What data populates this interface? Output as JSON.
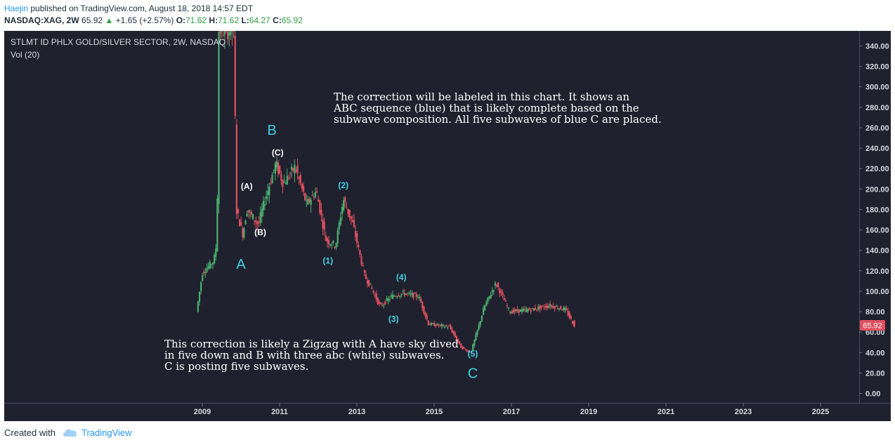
{
  "header": {
    "user": "Haejin",
    "published_text": "published on TradingView.com, August 18, 2018 14:57 EDT",
    "symbol": "NASDAQ:XAG, 2W",
    "last": "65.92",
    "change": "+1.65 (+2.57%)",
    "o_label": "O:",
    "o": "71.62",
    "h_label": "H:",
    "h": "71.62",
    "l_label": "L:",
    "l": "64.27",
    "c_label": "C:",
    "c": "65.92"
  },
  "chart_title": "STLMT ID PHLX GOLD/SILVER SECTOR, 2W, NASDAQ",
  "volume_label": "Vol (20)",
  "price_badge": "65.92",
  "annotations": {
    "top_text": "The correction will be labeled in this chart. It shows an\nABC sequence (blue) that is likely complete based on the\nsubwave composition. All five subwaves of blue C are placed.",
    "bottom_text": "This correction is likely a Zigzag with A have sky dived\nin five down and B with three abc (white) subwaves.\nC is posting five subwaves.",
    "wave_labels": [
      {
        "text": "A",
        "date": 2010.0,
        "price": 122,
        "color": "cyan",
        "size": "big"
      },
      {
        "text": "B",
        "date": 2010.8,
        "price": 253,
        "color": "cyan",
        "size": "big"
      },
      {
        "text": "C",
        "date": 2016.0,
        "price": 15,
        "color": "cyan",
        "size": "big"
      },
      {
        "text": "(A)",
        "date": 2010.15,
        "price": 200,
        "color": "white",
        "size": "small"
      },
      {
        "text": "(B)",
        "date": 2010.5,
        "price": 155,
        "color": "white",
        "size": "small"
      },
      {
        "text": "(C)",
        "date": 2010.95,
        "price": 233,
        "color": "white",
        "size": "small"
      },
      {
        "text": "(1)",
        "date": 2012.25,
        "price": 127,
        "color": "cyan",
        "size": "small"
      },
      {
        "text": "(2)",
        "date": 2012.65,
        "price": 201,
        "color": "cyan",
        "size": "small"
      },
      {
        "text": "(3)",
        "date": 2013.95,
        "price": 70,
        "color": "cyan",
        "size": "small"
      },
      {
        "text": "(4)",
        "date": 2014.15,
        "price": 111,
        "color": "cyan",
        "size": "small"
      },
      {
        "text": "(5)",
        "date": 2016.0,
        "price": 36,
        "color": "cyan",
        "size": "small"
      }
    ]
  },
  "footer": {
    "created_with": "Created with",
    "brand": "TradingView"
  },
  "colors": {
    "background": "#1f212e",
    "up": "#4caf70",
    "down": "#e0505f",
    "cyan": "#41d1e6",
    "axis_text": "#d6d8e0",
    "grid": "#2d3040"
  },
  "chart_data": {
    "type": "candlestick",
    "x_axis": {
      "ticks": [
        "2009",
        "2011",
        "2013",
        "2015",
        "2017",
        "2019",
        "2021",
        "2023",
        "2025"
      ],
      "range": [
        2008.2,
        2025.7
      ]
    },
    "y_axis": {
      "ticks": [
        "0.00",
        "20.00",
        "40.00",
        "60.00",
        "80.00",
        "100.00",
        "120.00",
        "140.00",
        "160.00",
        "180.00",
        "200.00",
        "220.00",
        "240.00",
        "260.00",
        "280.00",
        "300.00",
        "320.00",
        "340.00"
      ],
      "range": [
        -5,
        355
      ]
    },
    "grid": false,
    "approx_close_path": [
      {
        "date": 2008.85,
        "price": 80
      },
      {
        "date": 2009.0,
        "price": 118
      },
      {
        "date": 2009.3,
        "price": 130
      },
      {
        "date": 2009.38,
        "price": 150
      },
      {
        "date": 2009.42,
        "price": 355
      },
      {
        "date": 2009.82,
        "price": 355
      },
      {
        "date": 2009.88,
        "price": 180
      },
      {
        "date": 2010.05,
        "price": 155
      },
      {
        "date": 2010.15,
        "price": 180
      },
      {
        "date": 2010.45,
        "price": 165
      },
      {
        "date": 2010.55,
        "price": 180
      },
      {
        "date": 2010.9,
        "price": 225
      },
      {
        "date": 2011.1,
        "price": 205
      },
      {
        "date": 2011.4,
        "price": 222
      },
      {
        "date": 2011.7,
        "price": 185
      },
      {
        "date": 2011.95,
        "price": 198
      },
      {
        "date": 2012.2,
        "price": 150
      },
      {
        "date": 2012.45,
        "price": 145
      },
      {
        "date": 2012.65,
        "price": 190
      },
      {
        "date": 2012.9,
        "price": 165
      },
      {
        "date": 2013.2,
        "price": 115
      },
      {
        "date": 2013.35,
        "price": 105
      },
      {
        "date": 2013.6,
        "price": 85
      },
      {
        "date": 2013.9,
        "price": 95
      },
      {
        "date": 2014.2,
        "price": 98
      },
      {
        "date": 2014.6,
        "price": 95
      },
      {
        "date": 2014.85,
        "price": 68
      },
      {
        "date": 2015.4,
        "price": 65
      },
      {
        "date": 2015.7,
        "price": 45
      },
      {
        "date": 2015.95,
        "price": 40
      },
      {
        "date": 2016.3,
        "price": 85
      },
      {
        "date": 2016.6,
        "price": 108
      },
      {
        "date": 2016.95,
        "price": 80
      },
      {
        "date": 2017.5,
        "price": 82
      },
      {
        "date": 2018.0,
        "price": 86
      },
      {
        "date": 2018.4,
        "price": 82
      },
      {
        "date": 2018.63,
        "price": 65.92
      }
    ]
  }
}
